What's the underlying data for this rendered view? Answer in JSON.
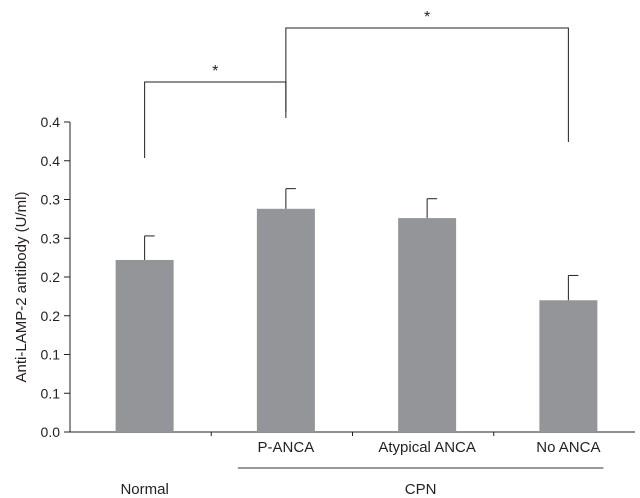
{
  "chart_data": {
    "type": "bar",
    "title": "",
    "xlabel": "",
    "ylabel": "Anti-LAMP-2 antibody (U/ml)",
    "ylim": [
      0,
      0.4
    ],
    "yticks": [
      0.0,
      0.05,
      0.1,
      0.15,
      0.2,
      0.25,
      0.3,
      0.35,
      0.4
    ],
    "ytick_labels": [
      "0.0",
      "0.1",
      "0.1",
      "0.2",
      "0.2",
      "0.3",
      "0.3",
      "0.4",
      "0.4"
    ],
    "categories": [
      "Normal",
      "P-ANCA",
      "Atypical ANCA",
      "No ANCA"
    ],
    "values": [
      0.222,
      0.288,
      0.276,
      0.17
    ],
    "errors": [
      0.031,
      0.026,
      0.025,
      0.032
    ],
    "bar_color": "#939598",
    "group_label": "CPN",
    "group_members": [
      "P-ANCA",
      "Atypical ANCA",
      "No ANCA"
    ],
    "significance": [
      {
        "from": "Normal",
        "to": "P-ANCA",
        "label": "*"
      },
      {
        "from": "P-ANCA",
        "to": "No ANCA",
        "label": "*"
      }
    ],
    "grid": false,
    "legend": "none"
  }
}
